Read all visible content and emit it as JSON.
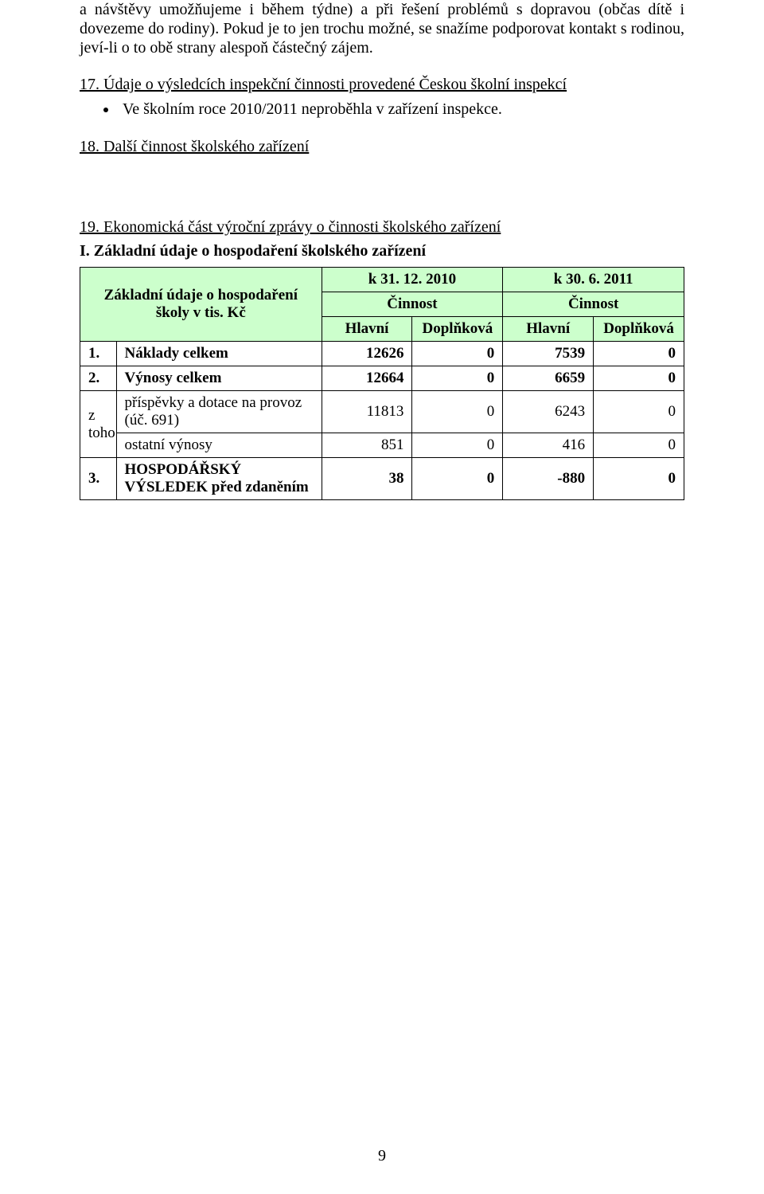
{
  "style": {
    "background_color": "#ffffff",
    "text_color": "#000000",
    "font_family": "Times New Roman",
    "body_font_size_pt": 15,
    "table_header_fill": "#ccffcc",
    "table_border_color": "#000000"
  },
  "paragraphs": {
    "intro": "a návštěvy umožňujeme i během týdne) a při řešení problémů s dopravou (občas dítě i dovezeme do rodiny). Pokud je to jen trochu možné, se snažíme podporovat kontakt s rodinou, jeví-li o to obě strany alespoň částečný zájem."
  },
  "sections": {
    "s17_heading": "17. Údaje o výsledcích inspekční činnosti provedené Českou školní inspekcí",
    "s17_bullet": "Ve školním roce 2010/2011 neproběhla v zařízení inspekce.",
    "s18_heading": "18. Další činnost školského zařízení",
    "s19_heading": "19. Ekonomická část výroční zprávy o činnosti školského zařízení",
    "s19_sub": "I. Základní údaje o hospodaření školského zařízení"
  },
  "table": {
    "type": "table",
    "rowhead": "Základní údaje o hospodaření školy v tis. Kč",
    "period1": "k 31. 12. 2010",
    "period2": "k 30. 6. 2011",
    "activity": "Činnost",
    "col_main": "Hlavní",
    "col_supp": "Doplňková",
    "columns_alignment": [
      "left",
      "left",
      "right",
      "right",
      "right",
      "right"
    ],
    "column_widths_pct": [
      6,
      34,
      15,
      15,
      15,
      15
    ],
    "rows": [
      {
        "idx": "1.",
        "label": "Náklady celkem",
        "bold": true,
        "values": [
          "12626",
          "0",
          "7539",
          "0"
        ]
      },
      {
        "idx": "2.",
        "label": "Výnosy celkem",
        "bold": true,
        "values": [
          "12664",
          "0",
          "6659",
          "0"
        ]
      },
      {
        "idx": "z toho",
        "label": "příspěvky a dotace na provoz (úč. 691)",
        "bold": false,
        "values": [
          "11813",
          "0",
          "6243",
          "0"
        ],
        "idx_rowspan": 2
      },
      {
        "idx": "",
        "label": "ostatní výnosy",
        "bold": false,
        "values": [
          "851",
          "0",
          "416",
          "0"
        ],
        "idx_skip": true
      },
      {
        "idx": "3.",
        "label": "HOSPODÁŘSKÝ VÝSLEDEK před zdaněním",
        "bold": true,
        "values": [
          "38",
          "0",
          "-880",
          "0"
        ]
      }
    ]
  },
  "page_number": "9"
}
